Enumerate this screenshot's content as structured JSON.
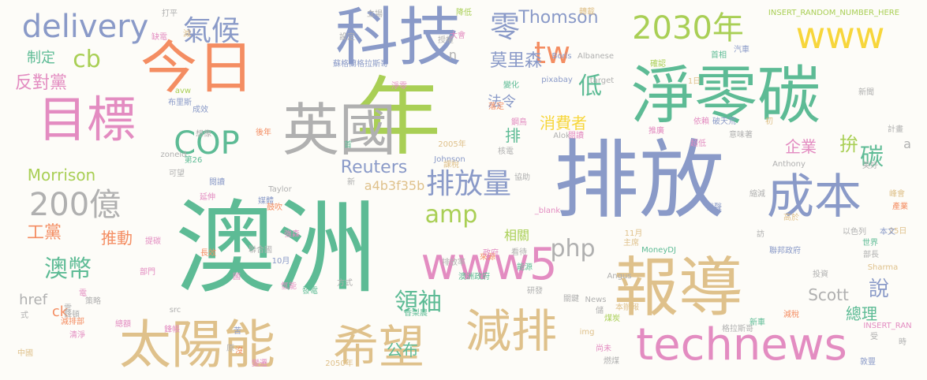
{
  "palette": {
    "green": "#5dbb95",
    "blue": "#8a9ac8",
    "orange": "#f48d62",
    "pink": "#e38cc1",
    "tan": "#dfc18b",
    "gray": "#b0b0b0",
    "lime": "#a9cf55",
    "yellow": "#f7d63b"
  },
  "words": [
    {
      "text": "澳洲",
      "color": "green"
    },
    {
      "text": "排放",
      "color": "blue"
    },
    {
      "text": "年",
      "color": "lime"
    },
    {
      "text": "淨零碳",
      "color": "green"
    },
    {
      "text": "科技",
      "color": "blue"
    },
    {
      "text": "報導",
      "color": "tan"
    },
    {
      "text": "今日",
      "color": "orange"
    },
    {
      "text": "英國",
      "color": "gray"
    },
    {
      "text": "目標",
      "color": "pink"
    },
    {
      "text": "太陽能",
      "color": "tan"
    },
    {
      "text": "希望",
      "color": "tan"
    },
    {
      "text": "減排",
      "color": "tan"
    },
    {
      "text": "technews",
      "color": "pink"
    },
    {
      "text": "成本",
      "color": "blue"
    },
    {
      "text": "www5",
      "color": "pink"
    },
    {
      "text": "www",
      "color": "yellow"
    },
    {
      "text": "2030年",
      "color": "lime"
    },
    {
      "text": "delivery",
      "color": "blue"
    },
    {
      "text": "200億",
      "color": "gray"
    },
    {
      "text": "COP",
      "color": "green"
    },
    {
      "text": "排放量",
      "color": "blue"
    },
    {
      "text": "氣候",
      "color": "blue"
    },
    {
      "text": "amp",
      "color": "lime"
    },
    {
      "text": "php",
      "color": "gray"
    },
    {
      "text": "tw",
      "color": "orange"
    },
    {
      "text": "零",
      "color": "blue"
    },
    {
      "text": "低",
      "color": "green"
    },
    {
      "text": "澳幣",
      "color": "green"
    },
    {
      "text": "領袖",
      "color": "green"
    },
    {
      "text": "cb",
      "color": "lime"
    },
    {
      "text": "Thomson",
      "color": "blue"
    },
    {
      "text": "莫里森",
      "color": "blue"
    },
    {
      "text": "反對黨",
      "color": "pink"
    },
    {
      "text": "工黨",
      "color": "orange"
    },
    {
      "text": "Reuters",
      "color": "blue"
    },
    {
      "text": "Morrison",
      "color": "lime"
    },
    {
      "text": "推動",
      "color": "orange"
    },
    {
      "text": "公布",
      "color": "green"
    },
    {
      "text": "說",
      "color": "blue"
    },
    {
      "text": "Scott",
      "color": "gray"
    },
    {
      "text": "總理",
      "color": "green"
    },
    {
      "text": "a4b3f35b",
      "color": "tan"
    },
    {
      "text": "碳",
      "color": "green"
    },
    {
      "text": "拚",
      "color": "lime"
    },
    {
      "text": "企業",
      "color": "pink"
    },
    {
      "text": "消費者",
      "color": "yellow"
    },
    {
      "text": "法令",
      "color": "blue"
    },
    {
      "text": "相關",
      "color": "lime"
    },
    {
      "text": "排",
      "color": "green"
    },
    {
      "text": "制定",
      "color": "green"
    },
    {
      "text": "href",
      "color": "gray"
    },
    {
      "text": "ck",
      "color": "orange"
    },
    {
      "text": "n",
      "color": "gray"
    },
    {
      "text": "a",
      "color": "gray"
    },
    {
      "text": "INSERT_RANDOM_NUMBER_HERE",
      "color": "lime"
    },
    {
      "text": "INSERT_RAN",
      "color": "pink"
    },
    {
      "text": "_blank",
      "color": "pink"
    },
    {
      "text": "Johnson",
      "color": "blue"
    },
    {
      "text": "Taylor",
      "color": "gray"
    },
    {
      "text": "Boris",
      "color": "blue"
    },
    {
      "text": "Albanese",
      "color": "gray"
    },
    {
      "text": "Anthony",
      "color": "gray"
    },
    {
      "text": "Sharma",
      "color": "tan"
    },
    {
      "text": "Angus",
      "color": "gray"
    },
    {
      "text": "Alok",
      "color": "gray"
    },
    {
      "text": "MoneyDJ",
      "color": "green"
    },
    {
      "text": "pixabay",
      "color": "blue"
    },
    {
      "text": "target",
      "color": "gray"
    },
    {
      "text": "News",
      "color": "gray"
    },
    {
      "text": "zoneid",
      "color": "gray"
    },
    {
      "text": "src",
      "color": "gray"
    },
    {
      "text": "img",
      "color": "tan"
    },
    {
      "text": "avw",
      "color": "lime"
    },
    {
      "text": "2005年",
      "color": "tan"
    },
    {
      "text": "2050年",
      "color": "tan"
    },
    {
      "text": "10月",
      "color": "blue"
    },
    {
      "text": "11月",
      "color": "tan"
    },
    {
      "text": "25日",
      "color": "tan"
    },
    {
      "text": "1日",
      "color": "tan"
    },
    {
      "text": "蘇格蘭格拉斯哥",
      "color": "blue"
    },
    {
      "text": "格拉斯哥",
      "color": "gray"
    },
    {
      "text": "澳洲政府",
      "color": "green"
    },
    {
      "text": "聯邦政府",
      "color": "blue"
    },
    {
      "text": "布里斯",
      "color": "blue"
    },
    {
      "text": "聯合國",
      "color": "gray"
    },
    {
      "text": "香梨農",
      "color": "green"
    },
    {
      "text": "新聞",
      "color": "gray"
    },
    {
      "text": "世界",
      "color": "green"
    },
    {
      "text": "部長",
      "color": "gray"
    },
    {
      "text": "本文",
      "color": "blue"
    },
    {
      "text": "以色列",
      "color": "gray"
    },
    {
      "text": "產業",
      "color": "orange"
    },
    {
      "text": "高於",
      "color": "tan"
    },
    {
      "text": "縮減",
      "color": "gray"
    },
    {
      "text": "發聲",
      "color": "blue"
    },
    {
      "text": "計畫",
      "color": "gray"
    },
    {
      "text": "峰會",
      "color": "tan"
    },
    {
      "text": "美好",
      "color": "gray"
    },
    {
      "text": "超低",
      "color": "pink"
    },
    {
      "text": "意味著",
      "color": "gray"
    },
    {
      "text": "破天荒",
      "color": "blue"
    },
    {
      "text": "依賴",
      "color": "pink"
    },
    {
      "text": "首相",
      "color": "green"
    },
    {
      "text": "汽車",
      "color": "blue"
    },
    {
      "text": "確認",
      "color": "lime"
    },
    {
      "text": "推廣",
      "color": "pink"
    },
    {
      "text": "主席",
      "color": "tan"
    },
    {
      "text": "能源",
      "color": "green"
    },
    {
      "text": "投資",
      "color": "gray"
    },
    {
      "text": "關鍵",
      "color": "gray"
    },
    {
      "text": "煤炭",
      "color": "lime"
    },
    {
      "text": "本辦報",
      "color": "tan"
    },
    {
      "text": "減稅",
      "color": "orange"
    },
    {
      "text": "新車",
      "color": "green"
    },
    {
      "text": "尚未",
      "color": "pink"
    },
    {
      "text": "燃煤",
      "color": "gray"
    },
    {
      "text": "研發",
      "color": "gray"
    },
    {
      "text": "排放率",
      "color": "gray"
    },
    {
      "text": "來源",
      "color": "orange"
    },
    {
      "text": "政府",
      "color": "pink"
    },
    {
      "text": "協助",
      "color": "gray"
    },
    {
      "text": "方式",
      "color": "gray"
    },
    {
      "text": "看待",
      "color": "gray"
    },
    {
      "text": "核電",
      "color": "gray"
    },
    {
      "text": "閱讀",
      "color": "pink"
    },
    {
      "text": "鋼鳥",
      "color": "pink"
    },
    {
      "text": "落定",
      "color": "orange"
    },
    {
      "text": "變化",
      "color": "green"
    },
    {
      "text": "淨零",
      "color": "pink"
    },
    {
      "text": "長效",
      "color": "orange"
    },
    {
      "text": "氫能",
      "color": "pink"
    },
    {
      "text": "發電",
      "color": "green"
    },
    {
      "text": "媒體",
      "color": "blue"
    },
    {
      "text": "強森",
      "color": "pink"
    },
    {
      "text": "鼓吹",
      "color": "orange"
    },
    {
      "text": "總額",
      "color": "pink"
    },
    {
      "text": "減排部",
      "color": "orange"
    },
    {
      "text": "清淨",
      "color": "pink"
    },
    {
      "text": "變遷",
      "color": "pink"
    },
    {
      "text": "中國",
      "color": "tan"
    },
    {
      "text": "授權",
      "color": "gray"
    },
    {
      "text": "大會",
      "color": "pink"
    },
    {
      "text": "轉載",
      "color": "tan"
    },
    {
      "text": "降低",
      "color": "lime"
    },
    {
      "text": "設定",
      "color": "gray"
    },
    {
      "text": "立場",
      "color": "gray"
    },
    {
      "text": "打平",
      "color": "gray"
    },
    {
      "text": "缺電",
      "color": "pink"
    },
    {
      "text": "成效",
      "color": "blue"
    },
    {
      "text": "想像",
      "color": "gray"
    },
    {
      "text": "後年",
      "color": "orange"
    },
    {
      "text": "第26",
      "color": "green"
    },
    {
      "text": "可望",
      "color": "gray"
    },
    {
      "text": "閱讀",
      "color": "blue"
    },
    {
      "text": "延伸",
      "color": "pink"
    },
    {
      "text": "提碳",
      "color": "pink"
    },
    {
      "text": "部門",
      "color": "pink"
    },
    {
      "text": "策略",
      "color": "gray"
    },
    {
      "text": "鋒頓",
      "color": "gray"
    },
    {
      "text": "雲",
      "color": "gray"
    },
    {
      "text": "式",
      "color": "gray"
    },
    {
      "text": "鋒帳",
      "color": "pink"
    },
    {
      "text": "苦",
      "color": "blue"
    },
    {
      "text": "原",
      "color": "gray"
    },
    {
      "text": "新",
      "color": "gray"
    },
    {
      "text": "首",
      "color": "green"
    },
    {
      "text": "課稅",
      "color": "tan"
    },
    {
      "text": "初",
      "color": "tan"
    },
    {
      "text": "敦豐",
      "color": "blue"
    },
    {
      "text": "時",
      "color": "gray"
    },
    {
      "text": "受",
      "color": "gray"
    },
    {
      "text": "訪",
      "color": "gray"
    },
    {
      "text": "儲",
      "color": "gray"
    },
    {
      "text": "沒",
      "color": "orange"
    },
    {
      "text": "國",
      "color": "pink"
    },
    {
      "text": "電",
      "color": "pink"
    },
    {
      "text": "減",
      "color": "tan"
    }
  ]
}
